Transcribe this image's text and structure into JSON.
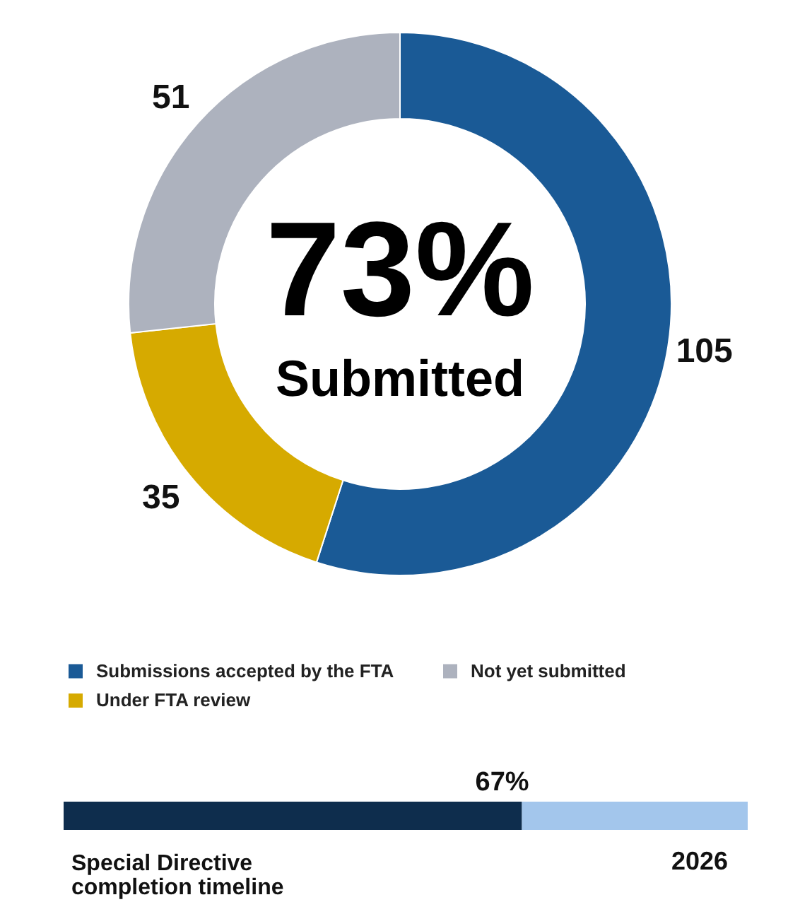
{
  "chart_data": [
    {
      "type": "donut",
      "categories": [
        "Submissions accepted by the FTA",
        "Under FTA review",
        "Not yet submitted"
      ],
      "values": [
        105,
        35,
        51
      ],
      "colors": [
        "#1a5a96",
        "#d6aa00",
        "#adb2be"
      ],
      "data_labels": true,
      "legend": "bottom",
      "annotations": [
        "73%",
        "Submitted"
      ]
    },
    {
      "type": "bar",
      "orientation": "horizontal",
      "stacked": true,
      "categories": [
        null
      ],
      "series": [
        {
          "color": "#0e2d4d",
          "values": [
            67
          ],
          "value_labels": [
            "67%"
          ]
        },
        {
          "color": "#a3c6ec",
          "values": [
            33
          ]
        }
      ],
      "xlim": [
        0,
        100
      ],
      "tick_labels": false,
      "xlabel": "Special Directive completion timeline",
      "annotations": [
        "2026"
      ]
    }
  ]
}
